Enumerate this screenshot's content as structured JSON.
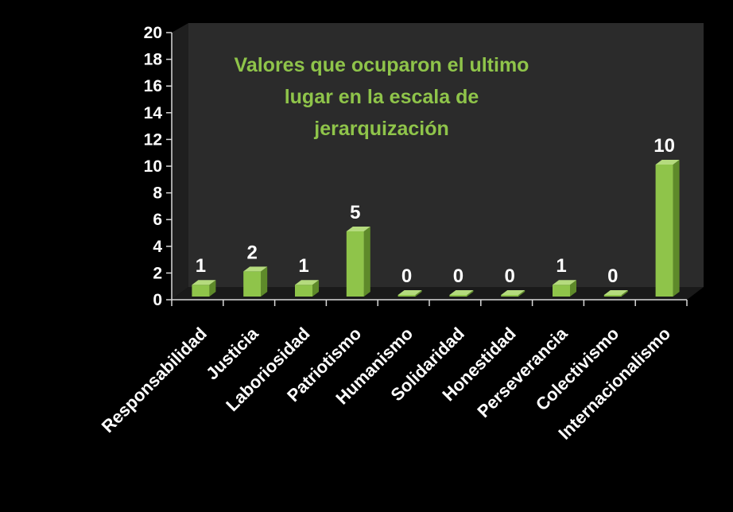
{
  "chart_data": {
    "type": "bar",
    "title": "Valores que ocuparon el ultimo lugar en la escala de jerarquización",
    "categories": [
      "Responsabilidad",
      "Justicia",
      "Laboriosidad",
      "Patriotismo",
      "Humanismo",
      "Solidaridad",
      "Honestidad",
      "Perseverancia",
      "Colectivismo",
      "Internacionalismo"
    ],
    "values": [
      1,
      2,
      1,
      5,
      0,
      0,
      0,
      1,
      0,
      10
    ],
    "yticks": [
      "0",
      "2",
      "4",
      "6",
      "8",
      "10",
      "12",
      "14",
      "16",
      "18",
      "20"
    ],
    "ylim": [
      0,
      20
    ],
    "grid": false,
    "legend": "none",
    "bar_color": "#8fc44a",
    "bar_dark": "#5e8a2a",
    "bar_light": "#b5db7e",
    "wall_color": "#2b2b2b",
    "floor_color": "#1a1a1a",
    "title_color": "#8fc44a"
  }
}
